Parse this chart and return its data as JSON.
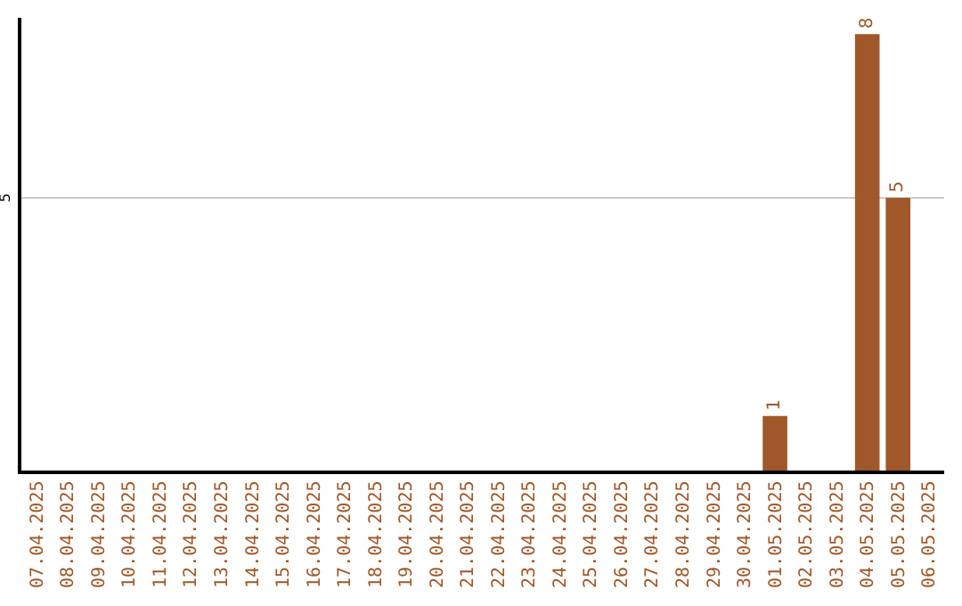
{
  "chart_data": {
    "type": "bar",
    "categories": [
      "07.04.2025",
      "08.04.2025",
      "09.04.2025",
      "10.04.2025",
      "11.04.2025",
      "12.04.2025",
      "13.04.2025",
      "14.04.2025",
      "15.04.2025",
      "16.04.2025",
      "17.04.2025",
      "18.04.2025",
      "19.04.2025",
      "20.04.2025",
      "21.04.2025",
      "22.04.2025",
      "23.04.2025",
      "24.04.2025",
      "25.04.2025",
      "26.04.2025",
      "27.04.2025",
      "28.04.2025",
      "29.04.2025",
      "30.04.2025",
      "01.05.2025",
      "02.05.2025",
      "03.05.2025",
      "04.05.2025",
      "05.05.2025",
      "06.05.2025"
    ],
    "values": [
      null,
      null,
      null,
      null,
      null,
      null,
      null,
      null,
      null,
      null,
      null,
      null,
      null,
      null,
      null,
      null,
      null,
      null,
      null,
      null,
      null,
      null,
      null,
      null,
      1,
      null,
      null,
      8,
      5,
      null
    ],
    "value_labels": [
      null,
      null,
      null,
      null,
      null,
      null,
      null,
      null,
      null,
      null,
      null,
      null,
      null,
      null,
      null,
      null,
      null,
      null,
      null,
      null,
      null,
      null,
      null,
      null,
      "1",
      null,
      null,
      "8",
      "5",
      null
    ],
    "ylim": [
      0,
      8.3
    ],
    "tick_labels": "x",
    "ref_lines": [
      {
        "axis": "y",
        "value": 5,
        "label": "5",
        "color": "#cccccc"
      }
    ],
    "color": "#a0582a",
    "legend": false
  }
}
